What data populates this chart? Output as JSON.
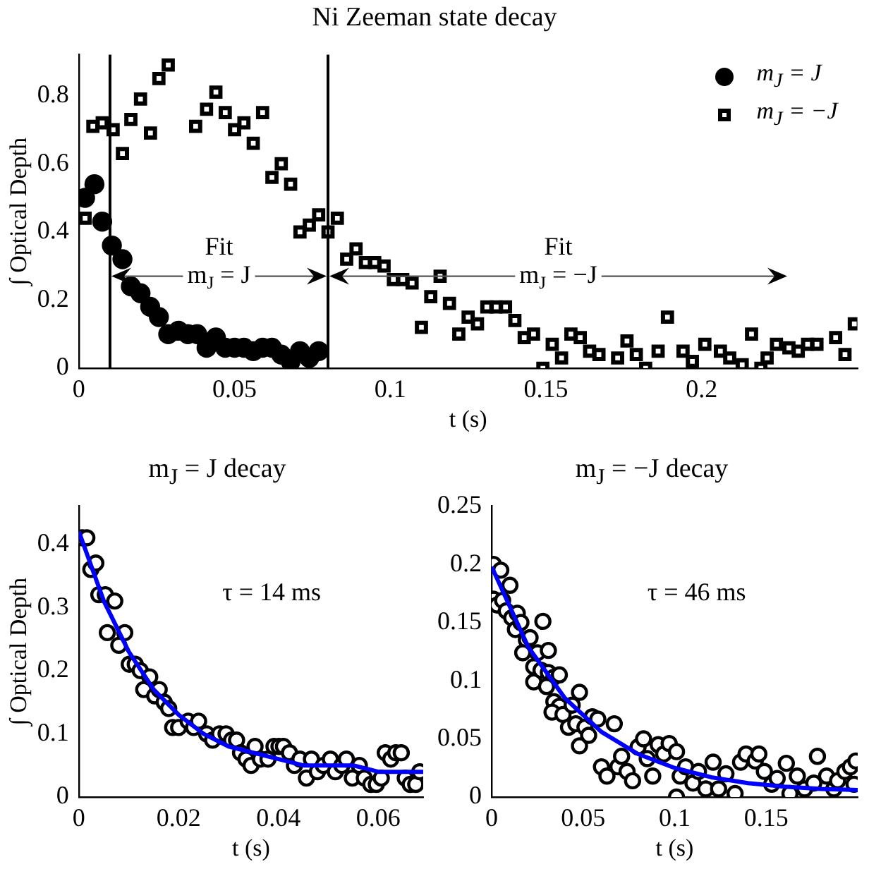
{
  "chart_data": [
    {
      "type": "scatter",
      "title": "Ni Zeeman state decay",
      "xlabel": "t (s)",
      "ylabel": "∫ Optical Depth",
      "xlim": [
        0,
        0.25
      ],
      "xticks": [
        0,
        0.05,
        0.1,
        0.15,
        0.2
      ],
      "ylim": [
        0,
        0.92
      ],
      "yticks": [
        0,
        0.2,
        0.4,
        0.6,
        0.8
      ],
      "legend": "top right",
      "series": [
        {
          "name": "m$_{J}$ = J",
          "color": "#000000",
          "marker": "circle",
          "x": [
            0.002,
            0.005,
            0.0075,
            0.0106,
            0.014,
            0.0167,
            0.0198,
            0.0229,
            0.0257,
            0.0287,
            0.032,
            0.035,
            0.038,
            0.041,
            0.044,
            0.047,
            0.05,
            0.053,
            0.056,
            0.059,
            0.062,
            0.065,
            0.068,
            0.071,
            0.074,
            0.077
          ],
          "values": [
            0.5,
            0.54,
            0.43,
            0.36,
            0.32,
            0.24,
            0.22,
            0.18,
            0.15,
            0.1,
            0.11,
            0.1,
            0.1,
            0.06,
            0.09,
            0.06,
            0.06,
            0.06,
            0.05,
            0.06,
            0.06,
            0.04,
            0.02,
            0.05,
            0.03,
            0.05
          ]
        },
        {
          "name": "m$_{J}$ = −J",
          "color": "#000000",
          "marker": "square",
          "x": [
            0.002,
            0.0045,
            0.0075,
            0.011,
            0.014,
            0.0167,
            0.0198,
            0.023,
            0.0257,
            0.0287,
            0.0375,
            0.041,
            0.044,
            0.047,
            0.05,
            0.053,
            0.056,
            0.059,
            0.062,
            0.065,
            0.068,
            0.071,
            0.074,
            0.077,
            0.08,
            0.083,
            0.086,
            0.089,
            0.092,
            0.095,
            0.098,
            0.101,
            0.104,
            0.107,
            0.11,
            0.113,
            0.116,
            0.119,
            0.122,
            0.125,
            0.128,
            0.131,
            0.134,
            0.137,
            0.14,
            0.143,
            0.146,
            0.149,
            0.152,
            0.155,
            0.158,
            0.161,
            0.164,
            0.167,
            0.173,
            0.176,
            0.179,
            0.182,
            0.186,
            0.189,
            0.194,
            0.197,
            0.201,
            0.206,
            0.209,
            0.213,
            0.216,
            0.219,
            0.221,
            0.224,
            0.228,
            0.231,
            0.234,
            0.237,
            0.243,
            0.246,
            0.249
          ],
          "values": [
            0.44,
            0.71,
            0.72,
            0.7,
            0.63,
            0.73,
            0.79,
            0.69,
            0.85,
            0.89,
            0.71,
            0.76,
            0.81,
            0.75,
            0.7,
            0.72,
            0.66,
            0.75,
            0.56,
            0.6,
            0.54,
            0.4,
            0.42,
            0.45,
            0.4,
            0.44,
            0.32,
            0.35,
            0.31,
            0.31,
            0.3,
            0.26,
            0.26,
            0.25,
            0.12,
            0.21,
            0.27,
            0.19,
            0.1,
            0.15,
            0.13,
            0.18,
            0.18,
            0.18,
            0.14,
            0.09,
            0.1,
            0,
            0.07,
            0.03,
            0.1,
            0.09,
            0.05,
            0.04,
            0.03,
            0.08,
            0.04,
            0,
            0.05,
            0.15,
            0.05,
            0.02,
            0.07,
            0.05,
            0.03,
            0.01,
            0.1,
            0,
            0.03,
            0.07,
            0.06,
            0.05,
            0.07,
            0.07,
            0.09,
            0.04,
            0.13
          ]
        }
      ],
      "ref_lines": [
        {
          "axis": "x",
          "value": 0.01,
          "color": "#000000"
        },
        {
          "axis": "x",
          "value": 0.08,
          "color": "#000000"
        }
      ],
      "annotations": [
        {
          "text": "m$_{J}$ = J",
          "x": 0.01,
          "y": 0.27
        },
        {
          "text": "m$_{J}$ = −J",
          "x": 0.08,
          "y": 0.27
        },
        "Fit",
        "Fit"
      ]
    },
    {
      "type": "scatter",
      "title": "m$_{J}$ = J decay",
      "xlabel": "t (s)",
      "ylabel": "∫ Optical Depth",
      "xlim": [
        0,
        0.069
      ],
      "xticks": [
        0,
        0.02,
        0.04,
        0.06
      ],
      "ylim": [
        0,
        0.46
      ],
      "yticks": [
        0,
        0.1,
        0.2,
        0.3,
        0.4
      ],
      "series": [
        {
          "color": "#000000",
          "marker": "circle",
          "x": [
            0.0007,
            0.0016,
            0.0024,
            0.0034,
            0.004,
            0.0053,
            0.0057,
            0.0072,
            0.008,
            0.0092,
            0.0101,
            0.0113,
            0.0123,
            0.013,
            0.0142,
            0.0152,
            0.0161,
            0.0171,
            0.018,
            0.0188,
            0.02,
            0.0219,
            0.023,
            0.024,
            0.0256,
            0.0268,
            0.0282,
            0.0295,
            0.0306,
            0.0316,
            0.0324,
            0.0335,
            0.0345,
            0.0353,
            0.0364,
            0.0379,
            0.0391,
            0.0401,
            0.041,
            0.0422,
            0.0432,
            0.0443,
            0.0456,
            0.0466,
            0.0478,
            0.049,
            0.0504,
            0.0514,
            0.0527,
            0.0536,
            0.0548,
            0.0562,
            0.0572,
            0.0585,
            0.0596,
            0.0606,
            0.0614,
            0.0625,
            0.0635,
            0.0646,
            0.0654,
            0.0664,
            0.0675,
            0.0683
          ],
          "values": [
            0.41,
            0.41,
            0.36,
            0.37,
            0.32,
            0.32,
            0.26,
            0.31,
            0.24,
            0.26,
            0.21,
            0.21,
            0.2,
            0.17,
            0.19,
            0.16,
            0.17,
            0.15,
            0.14,
            0.11,
            0.11,
            0.12,
            0.11,
            0.12,
            0.1,
            0.09,
            0.1,
            0.1,
            0.09,
            0.09,
            0.07,
            0.06,
            0.05,
            0.08,
            0.06,
            0.06,
            0.08,
            0.08,
            0.08,
            0.07,
            0.05,
            0.06,
            0.03,
            0.06,
            0.04,
            0.05,
            0.06,
            0.04,
            0.05,
            0.06,
            0.03,
            0.05,
            0.03,
            0.02,
            0.02,
            0.03,
            0.07,
            0.06,
            0.07,
            0.07,
            0.03,
            0.02,
            0.02,
            0.04
          ]
        },
        {
          "type": "line",
          "color": "#0000ff",
          "x": [
            0,
            0.005,
            0.01,
            0.015,
            0.02,
            0.025,
            0.03,
            0.035,
            0.04,
            0.045,
            0.05,
            0.055,
            0.06,
            0.065,
            0.069
          ],
          "values": [
            0.42,
            0.31,
            0.23,
            0.17,
            0.13,
            0.1,
            0.08,
            0.07,
            0.06,
            0.05,
            0.05,
            0.05,
            0.04,
            0.04,
            0.04
          ]
        }
      ],
      "annotations": [
        "τ = 14 ms"
      ]
    },
    {
      "type": "scatter",
      "title": "m$_{J}$ = −J decay",
      "xlabel": "t (s)",
      "xlim": [
        0,
        0.2
      ],
      "xticks": [
        0,
        0.05,
        0.1,
        0.15
      ],
      "ylim": [
        0,
        0.25
      ],
      "yticks": [
        0,
        0.05,
        0.1,
        0.15,
        0.2,
        0.25
      ],
      "series": [
        {
          "color": "#000000",
          "marker": "circle",
          "x": [
            0.001,
            0.005,
            0.001,
            0.003,
            0.006,
            0.01,
            0.008,
            0.011,
            0.014,
            0.013,
            0.016,
            0.019,
            0.021,
            0.017,
            0.025,
            0.028,
            0.031,
            0.023,
            0.023,
            0.027,
            0.031,
            0.034,
            0.037,
            0.03,
            0.034,
            0.037,
            0.033,
            0.039,
            0.044,
            0.048,
            0.042,
            0.046,
            0.048,
            0.051,
            0.055,
            0.058,
            0.053,
            0.06,
            0.063,
            0.067,
            0.069,
            0.071,
            0.074,
            0.077,
            0.08,
            0.083,
            0.085,
            0.088,
            0.091,
            0.094,
            0.097,
            0.101,
            0.101,
            0.103,
            0.106,
            0.11,
            0.113,
            0.117,
            0.121,
            0.124,
            0.128,
            0.133,
            0.136,
            0.139,
            0.144,
            0.146,
            0.149,
            0.153,
            0.156,
            0.161,
            0.163,
            0.167,
            0.171,
            0.176,
            0.178,
            0.183,
            0.187,
            0.189,
            0.193,
            0.196,
            0.199,
            0.198
          ],
          "values": [
            0.2,
            0.195,
            0.17,
            0.165,
            0.169,
            0.182,
            0.16,
            0.154,
            0.158,
            0.144,
            0.15,
            0.135,
            0.137,
            0.124,
            0.124,
            0.151,
            0.126,
            0.099,
            0.112,
            0.109,
            0.107,
            0.103,
            0.105,
            0.095,
            0.082,
            0.078,
            0.073,
            0.071,
            0.079,
            0.09,
            0.06,
            0.063,
            0.044,
            0.06,
            0.069,
            0.067,
            0.053,
            0.026,
            0.018,
            0.063,
            0.026,
            0.035,
            0.022,
            0.014,
            0.043,
            0.05,
            0.033,
            0.018,
            0.045,
            0.037,
            0.046,
            0.039,
            0,
            0.018,
            0.026,
            0.012,
            0.022,
            0.007,
            0.03,
            0.007,
            0.02,
            0.003,
            0.03,
            0.037,
            0.031,
            0.037,
            0.022,
            0.011,
            0.016,
            0.029,
            0.003,
            0.018,
            0.007,
            0.012,
            0.035,
            0.018,
            0.007,
            0.014,
            0.022,
            0.026,
            0.031,
            0.011
          ]
        },
        {
          "type": "line",
          "color": "#0000ff",
          "x": [
            0,
            0.02,
            0.04,
            0.06,
            0.08,
            0.1,
            0.12,
            0.14,
            0.16,
            0.18,
            0.2
          ],
          "values": [
            0.198,
            0.129,
            0.085,
            0.056,
            0.037,
            0.025,
            0.017,
            0.012,
            0.009,
            0.007,
            0.006
          ]
        }
      ],
      "annotations": [
        "τ = 46 ms"
      ]
    }
  ]
}
